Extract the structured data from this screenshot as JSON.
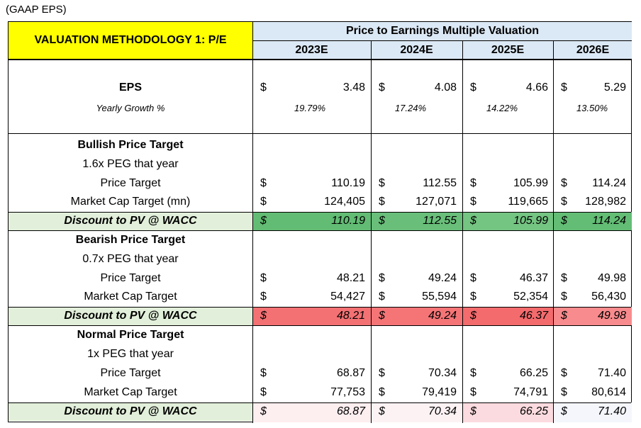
{
  "note": "(GAAP EPS)",
  "header": {
    "methodology": "VALUATION METHODOLOGY 1: P/E",
    "group_title": "Price to Earnings Multiple Valuation",
    "years": [
      "2023E",
      "2024E",
      "2025E",
      "2026E"
    ]
  },
  "currency_symbol": "$",
  "eps": {
    "label": "EPS",
    "values": [
      "3.48",
      "4.08",
      "4.66",
      "5.29"
    ],
    "growth_label": "Yearly Growth %",
    "growth": [
      "19.79%",
      "17.24%",
      "14.22%",
      "13.50%"
    ]
  },
  "bullish": {
    "title": "Bullish Price Target",
    "peg_label": "1.6x PEG that year",
    "price_label": "Price Target",
    "price": [
      "110.19",
      "112.55",
      "105.99",
      "114.24"
    ],
    "mcap_label": "Market Cap Target (mn)",
    "mcap": [
      "124,405",
      "127,071",
      "119,665",
      "128,982"
    ],
    "discount_label": "Discount to PV @ WACC",
    "discount": [
      "110.19",
      "112.55",
      "105.99",
      "114.24"
    ]
  },
  "bearish": {
    "title": "Bearish Price Target",
    "peg_label": "0.7x PEG that year",
    "price_label": "Price Target",
    "price": [
      "48.21",
      "49.24",
      "46.37",
      "49.98"
    ],
    "mcap_label": "Market Cap Target",
    "mcap": [
      "54,427",
      "55,594",
      "52,354",
      "56,430"
    ],
    "discount_label": "Discount to PV @ WACC",
    "discount": [
      "48.21",
      "49.24",
      "46.37",
      "49.98"
    ]
  },
  "normal": {
    "title": "Normal Price Target",
    "peg_label": "1x PEG that year",
    "price_label": "Price Target",
    "price": [
      "68.87",
      "70.34",
      "66.25",
      "71.40"
    ],
    "mcap_label": "Market Cap Target",
    "mcap": [
      "77,753",
      "79,419",
      "74,791",
      "80,614"
    ],
    "discount_label": "Discount to PV @ WACC",
    "discount": [
      "68.87",
      "70.34",
      "66.25",
      "71.40"
    ]
  },
  "colors": {
    "highlight_yellow": "#ffff00",
    "header_blue": "#dbe8f5",
    "label_green": "#e2efda",
    "bullish_fills": [
      "#62bc74",
      "#69bf7a",
      "#74c482",
      "#63bd75"
    ],
    "bearish_fills": [
      "#f47173",
      "#f57577",
      "#f36b6d",
      "#f88b8d"
    ],
    "normal_fills": [
      "#fdeef0",
      "#fcf2f4",
      "#fbdbdf",
      "#f4f6fc"
    ]
  }
}
